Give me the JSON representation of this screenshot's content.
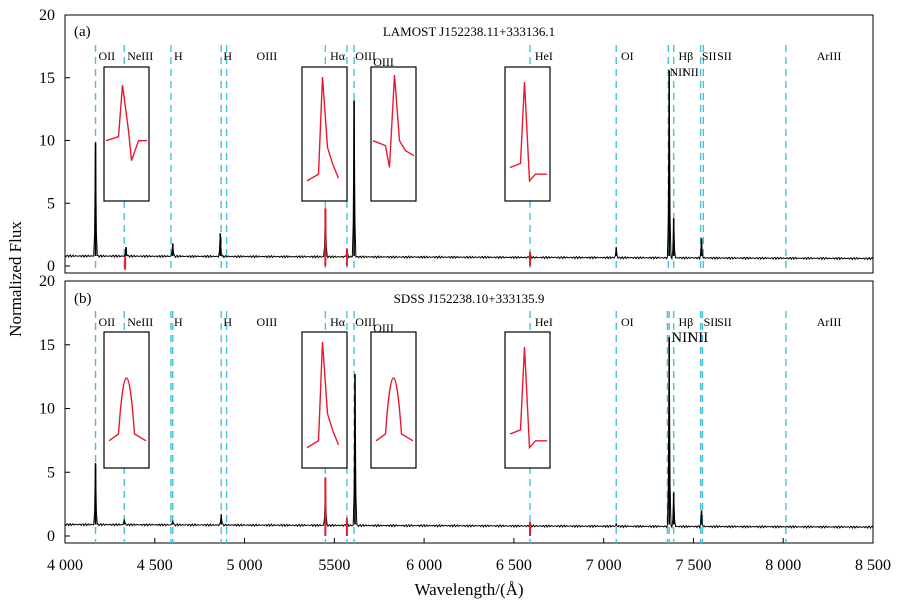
{
  "colors": {
    "guide": "#40c4d8",
    "spectrum": "#000000",
    "highlight": "#e8192c",
    "frame": "#000000"
  },
  "ylabel": "Normalized Flux",
  "xlabel": "Wavelength/(Å)",
  "xticks": [
    "4 000",
    "4 500",
    "5 000",
    "5500",
    "6 000",
    "6 500",
    "7 000",
    "7 500",
    "8 000",
    "8 500"
  ],
  "chart_data": [
    {
      "type": "line",
      "panel": "(a)",
      "title": "LAMOST J152238.11+333136.1",
      "xlim": [
        4000,
        8500
      ],
      "ylim": [
        0,
        20
      ],
      "yticks": [
        0,
        5,
        10,
        15,
        20
      ],
      "line_labels": [
        {
          "text": "OII",
          "x": 4170
        },
        {
          "text": "NeIII",
          "x": 4330
        },
        {
          "text": "H",
          "x": 4590
        },
        {
          "text": "H",
          "x": 4865
        },
        {
          "text": "OIII",
          "x": 5050
        },
        {
          "text": "Hα",
          "x": 5460
        },
        {
          "text": "OIII",
          "x": 5600
        },
        {
          "text": "OIII",
          "x": 5700
        },
        {
          "text": "HeI",
          "x": 6600
        },
        {
          "text": "OI",
          "x": 7080
        },
        {
          "text": "NII",
          "x": 7350
        },
        {
          "text": "Hβ",
          "x": 7400
        },
        {
          "text": "NII",
          "x": 7420
        },
        {
          "text": "SII",
          "x": 7530
        },
        {
          "text": "SII",
          "x": 7615
        },
        {
          "text": "ArIII",
          "x": 8170
        }
      ],
      "guide_lines": [
        4170,
        4330,
        4590,
        4870,
        4900,
        5450,
        5570,
        5610,
        6590,
        7070,
        7360,
        7390,
        7540,
        7555,
        8015
      ],
      "peaks": [
        {
          "x": 4170,
          "y": 9.8
        },
        {
          "x": 4340,
          "y": 1.5
        },
        {
          "x": 4600,
          "y": 1.8
        },
        {
          "x": 4865,
          "y": 2.6
        },
        {
          "x": 5450,
          "y": 4.5
        },
        {
          "x": 5570,
          "y": 1.4
        },
        {
          "x": 5610,
          "y": 13.2
        },
        {
          "x": 6590,
          "y": 1.1
        },
        {
          "x": 7070,
          "y": 1.5
        },
        {
          "x": 7365,
          "y": 15.6
        },
        {
          "x": 7390,
          "y": 3.8
        },
        {
          "x": 7545,
          "y": 2.2
        }
      ],
      "continuum": 0.8
    },
    {
      "type": "line",
      "panel": "(b)",
      "title": "SDSS J152238.10+333135.9",
      "xlim": [
        4000,
        8500
      ],
      "ylim": [
        0,
        20
      ],
      "yticks": [
        0,
        5,
        10,
        15,
        20
      ],
      "line_labels": [
        {
          "text": "OII",
          "x": 4170
        },
        {
          "text": "NeIII",
          "x": 4330
        },
        {
          "text": "H",
          "x": 4590
        },
        {
          "text": "H",
          "x": 4865
        },
        {
          "text": "OIII",
          "x": 5050
        },
        {
          "text": "Hα",
          "x": 5460
        },
        {
          "text": "OIII",
          "x": 5600
        },
        {
          "text": "OIII",
          "x": 5700
        },
        {
          "text": "HeI",
          "x": 6600
        },
        {
          "text": "OI",
          "x": 7080
        },
        {
          "text": "NII",
          "x": 7360
        },
        {
          "text": "Hβ",
          "x": 7400
        },
        {
          "text": "NII",
          "x": 7450
        },
        {
          "text": "SII",
          "x": 7540
        },
        {
          "text": "SII",
          "x": 7615
        },
        {
          "text": "ArIII",
          "x": 8170
        }
      ],
      "guide_lines": [
        4170,
        4330,
        4590,
        4600,
        4870,
        4900,
        5450,
        5570,
        5610,
        6590,
        7070,
        7355,
        7365,
        7390,
        7540,
        7550,
        8015
      ],
      "peaks": [
        {
          "x": 4170,
          "y": 5.7
        },
        {
          "x": 4330,
          "y": 1.3
        },
        {
          "x": 4600,
          "y": 1.2
        },
        {
          "x": 4870,
          "y": 1.7
        },
        {
          "x": 5450,
          "y": 3.6
        },
        {
          "x": 5570,
          "y": 1.2
        },
        {
          "x": 5615,
          "y": 12.7
        },
        {
          "x": 6590,
          "y": 1.0
        },
        {
          "x": 7070,
          "y": 1.0
        },
        {
          "x": 7365,
          "y": 15.6
        },
        {
          "x": 7390,
          "y": 3.4
        },
        {
          "x": 7545,
          "y": 2.0
        }
      ],
      "continuum": 0.9
    }
  ]
}
